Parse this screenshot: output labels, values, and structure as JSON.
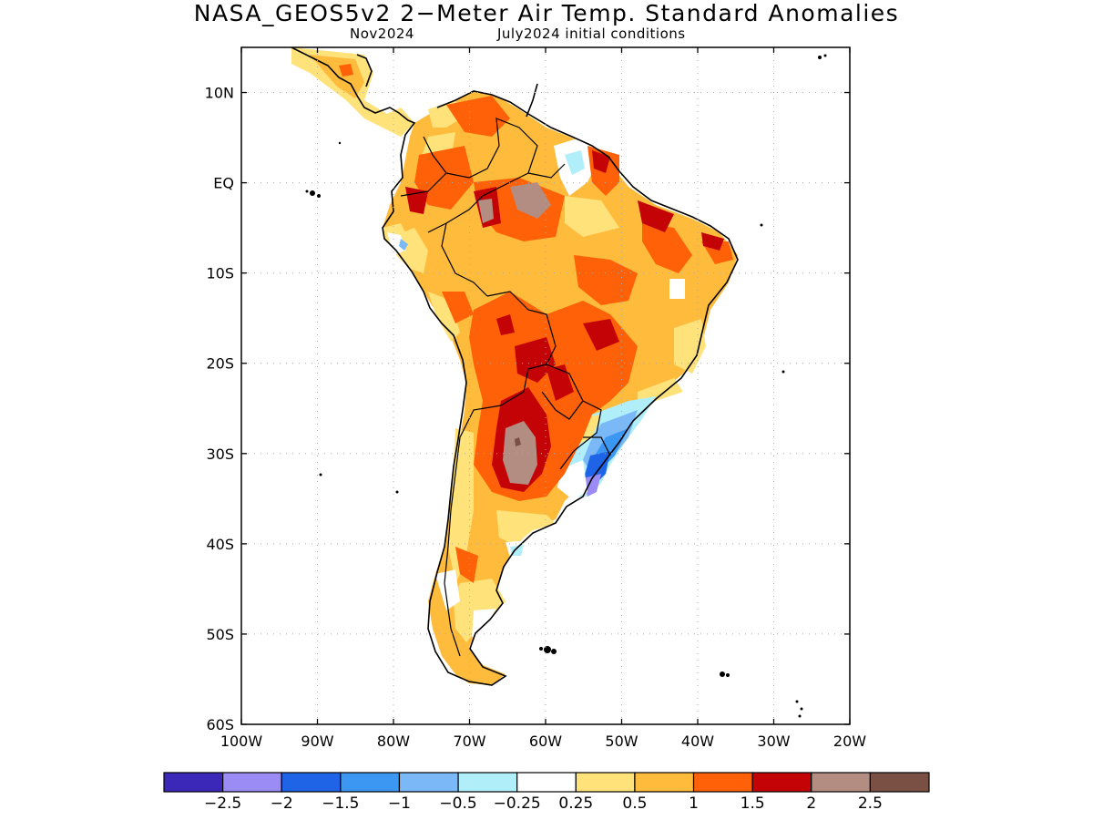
{
  "title": "NASA_GEOS5v2 2−Meter Air Temp. Standard Anomalies",
  "subtitle_left": "Nov2024",
  "subtitle_right": "July2024 initial conditions",
  "map": {
    "lon_ticks": [
      "100W",
      "90W",
      "80W",
      "70W",
      "60W",
      "50W",
      "40W",
      "30W",
      "20W"
    ],
    "lat_ticks": [
      "10N",
      "EQ",
      "10S",
      "20S",
      "30S",
      "40S",
      "50S",
      "60S"
    ],
    "lon_range": [
      -100,
      -20
    ],
    "lat_range": [
      -60,
      15
    ],
    "grid": "dotted"
  },
  "colorbar": {
    "colors": [
      "#3b27b8",
      "#9b8cf5",
      "#1f64e6",
      "#3c97f2",
      "#7ab8f8",
      "#b0eefa",
      "#ffffff",
      "#ffe27a",
      "#ffbb3c",
      "#ff6108",
      "#c40306",
      "#b38c82",
      "#7a5044"
    ],
    "labels": [
      "−2.5",
      "−2",
      "−1.5",
      "−1",
      "−0.5",
      "−0.25",
      "0.25",
      "0.5",
      "1",
      "1.5",
      "2",
      "2.5"
    ]
  },
  "regions": [
    {
      "name": "widespread-warm-anomaly-region",
      "level": "0.5 to 1",
      "color": "#ffbb3c"
    },
    {
      "name": "strong-warm-anomaly-region",
      "level": "1 to 1.5",
      "color": "#ff6108"
    },
    {
      "name": "very-strong-warm-anomaly-region",
      "level": "1.5 to 2",
      "color": "#c40306"
    },
    {
      "name": "extreme-warm-anomaly-region",
      "level": "2 to 2.5",
      "color": "#b38c82"
    },
    {
      "name": "cold-anomaly-southern-brazil",
      "level": "-0.5 to -2",
      "color": "#3c97f2"
    }
  ]
}
